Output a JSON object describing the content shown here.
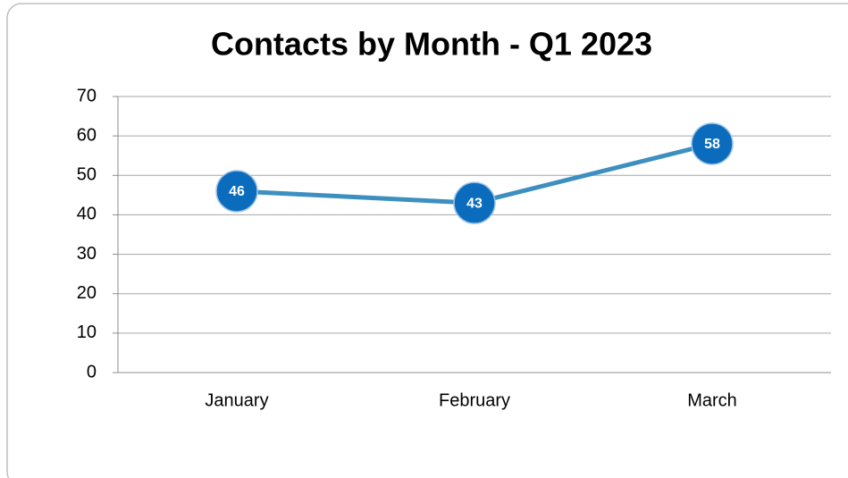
{
  "chart_data": {
    "type": "line",
    "title": "Contacts by Month - Q1 2023",
    "categories": [
      "January",
      "February",
      "March"
    ],
    "values": [
      46,
      43,
      58
    ],
    "color": "#3d8fc0",
    "marker_color": "#0b6cbd",
    "ylim": [
      0,
      70
    ],
    "yticks": [
      0,
      10,
      20,
      30,
      40,
      50,
      60,
      70
    ],
    "grid": true
  }
}
